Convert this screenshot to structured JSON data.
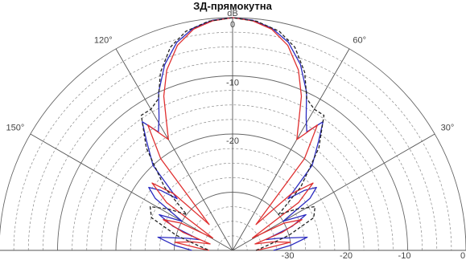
{
  "chart_data": {
    "type": "line",
    "subtype": "polar-half",
    "title": "ЗД-прямокутна",
    "radial_unit": "dB",
    "radial_min": -40,
    "radial_max": 0,
    "radial_ticks_on_axis": [
      "-30",
      "-20",
      "-10",
      "0"
    ],
    "radial_ticks_on_vertical": [
      "0",
      "-10",
      "-20"
    ],
    "angle_labels": [
      "30°",
      "60°",
      "120°",
      "150°"
    ],
    "angle_lines_deg": [
      0,
      30,
      60,
      90,
      120,
      150,
      180
    ],
    "grid": true,
    "series": [
      {
        "color": "#2a2ac0",
        "dash": "solid",
        "points": [
          [
            0,
            -33
          ],
          [
            5,
            -30
          ],
          [
            10,
            -27
          ],
          [
            15,
            -32
          ],
          [
            18,
            -34
          ],
          [
            22,
            -29
          ],
          [
            26,
            -26
          ],
          [
            30,
            -30
          ],
          [
            34,
            -24
          ],
          [
            37,
            -22
          ],
          [
            40,
            -24
          ],
          [
            43,
            -27
          ],
          [
            47,
            -20
          ],
          [
            52,
            -16
          ],
          [
            55,
            -13
          ],
          [
            58,
            -16
          ],
          [
            61,
            -14
          ],
          [
            65,
            -10
          ],
          [
            70,
            -6
          ],
          [
            75,
            -3
          ],
          [
            80,
            -1.2
          ],
          [
            85,
            -0.3
          ],
          [
            90,
            0
          ],
          [
            95,
            -0.3
          ],
          [
            100,
            -1.2
          ],
          [
            105,
            -3
          ],
          [
            110,
            -6
          ],
          [
            115,
            -10
          ],
          [
            119,
            -14
          ],
          [
            122,
            -16
          ],
          [
            125,
            -13
          ],
          [
            128,
            -16
          ],
          [
            133,
            -20
          ],
          [
            137,
            -27
          ],
          [
            140,
            -24
          ],
          [
            143,
            -22
          ],
          [
            146,
            -24
          ],
          [
            150,
            -30
          ],
          [
            154,
            -26
          ],
          [
            158,
            -29
          ],
          [
            162,
            -34
          ],
          [
            165,
            -32
          ],
          [
            170,
            -27
          ],
          [
            175,
            -30
          ],
          [
            180,
            -33
          ]
        ]
      },
      {
        "color": "#e03030",
        "dash": "solid",
        "points": [
          [
            0,
            -36
          ],
          [
            4,
            -34
          ],
          [
            8,
            -30
          ],
          [
            12,
            -33
          ],
          [
            16,
            -36
          ],
          [
            20,
            -31
          ],
          [
            24,
            -27
          ],
          [
            28,
            -30
          ],
          [
            32,
            -36
          ],
          [
            36,
            -26
          ],
          [
            40,
            -22
          ],
          [
            44,
            -26
          ],
          [
            48,
            -34
          ],
          [
            52,
            -20
          ],
          [
            56,
            -14
          ],
          [
            60,
            -18
          ],
          [
            63,
            -15
          ],
          [
            66,
            -11
          ],
          [
            70,
            -7
          ],
          [
            75,
            -3.5
          ],
          [
            80,
            -1.4
          ],
          [
            85,
            -0.4
          ],
          [
            90,
            0
          ],
          [
            95,
            -0.4
          ],
          [
            100,
            -1.4
          ],
          [
            105,
            -3.5
          ],
          [
            110,
            -7
          ],
          [
            114,
            -11
          ],
          [
            117,
            -15
          ],
          [
            120,
            -18
          ],
          [
            124,
            -14
          ],
          [
            128,
            -20
          ],
          [
            132,
            -34
          ],
          [
            136,
            -26
          ],
          [
            140,
            -22
          ],
          [
            144,
            -26
          ],
          [
            148,
            -36
          ],
          [
            152,
            -30
          ],
          [
            156,
            -27
          ],
          [
            160,
            -31
          ],
          [
            164,
            -36
          ],
          [
            168,
            -33
          ],
          [
            172,
            -30
          ],
          [
            176,
            -34
          ],
          [
            180,
            -36
          ]
        ]
      },
      {
        "color": "#222222",
        "dash": "dashed",
        "points": [
          [
            0,
            -36
          ],
          [
            8,
            -34
          ],
          [
            15,
            -30
          ],
          [
            22,
            -25
          ],
          [
            28,
            -24
          ],
          [
            33,
            -27
          ],
          [
            38,
            -30
          ],
          [
            43,
            -24
          ],
          [
            50,
            -17
          ],
          [
            56,
            -12
          ],
          [
            60,
            -12
          ],
          [
            64,
            -11
          ],
          [
            68,
            -7
          ],
          [
            73,
            -3.5
          ],
          [
            78,
            -1.5
          ],
          [
            84,
            -0.4
          ],
          [
            90,
            0
          ],
          [
            96,
            -0.4
          ],
          [
            102,
            -1.5
          ],
          [
            107,
            -3.5
          ],
          [
            112,
            -7
          ],
          [
            116,
            -11
          ],
          [
            120,
            -12
          ],
          [
            124,
            -12
          ],
          [
            130,
            -17
          ],
          [
            137,
            -24
          ],
          [
            142,
            -30
          ],
          [
            147,
            -27
          ],
          [
            152,
            -24
          ],
          [
            158,
            -25
          ],
          [
            165,
            -30
          ],
          [
            172,
            -34
          ],
          [
            180,
            -36
          ]
        ]
      }
    ]
  }
}
